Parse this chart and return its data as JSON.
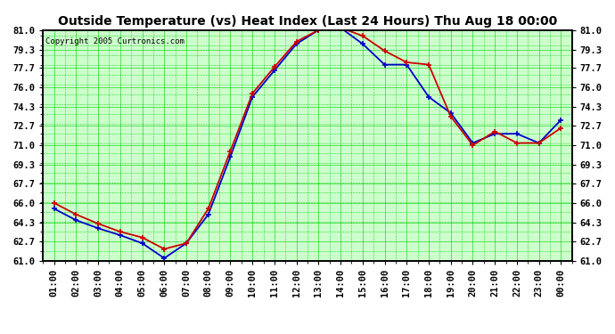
{
  "title": "Outside Temperature (vs) Heat Index (Last 24 Hours) Thu Aug 18 00:00",
  "copyright": "Copyright 2005 Curtronics.com",
  "x_labels": [
    "01:00",
    "02:00",
    "03:00",
    "04:00",
    "05:00",
    "06:00",
    "07:00",
    "08:00",
    "09:00",
    "10:00",
    "11:00",
    "12:00",
    "13:00",
    "14:00",
    "15:00",
    "16:00",
    "17:00",
    "18:00",
    "19:00",
    "20:00",
    "21:00",
    "22:00",
    "23:00",
    "00:00"
  ],
  "blue_data": [
    65.5,
    64.5,
    63.8,
    63.2,
    62.5,
    61.2,
    62.5,
    65.0,
    70.0,
    75.2,
    77.5,
    79.8,
    81.0,
    81.2,
    79.8,
    78.0,
    78.0,
    75.2,
    73.8,
    71.2,
    72.0,
    72.0,
    71.2,
    73.2
  ],
  "red_data": [
    66.0,
    65.0,
    64.2,
    63.5,
    63.0,
    62.0,
    62.5,
    65.5,
    70.5,
    75.5,
    77.8,
    80.0,
    81.0,
    81.2,
    80.5,
    79.2,
    78.2,
    78.0,
    73.5,
    71.0,
    72.2,
    71.2,
    71.2,
    72.5
  ],
  "ylim": [
    61.0,
    81.0
  ],
  "yticks": [
    61.0,
    62.7,
    64.3,
    66.0,
    67.7,
    69.3,
    71.0,
    72.7,
    74.3,
    76.0,
    77.7,
    79.3,
    81.0
  ],
  "blue_color": "#0000cc",
  "red_color": "#cc0000",
  "fig_bg": "#ffffff",
  "plot_bg": "#ccffcc",
  "grid_color": "#00cc00",
  "border_color": "#000000",
  "title_fontsize": 10,
  "tick_fontsize": 7.5,
  "marker": "+",
  "marker_size": 5,
  "linewidth": 1.3
}
